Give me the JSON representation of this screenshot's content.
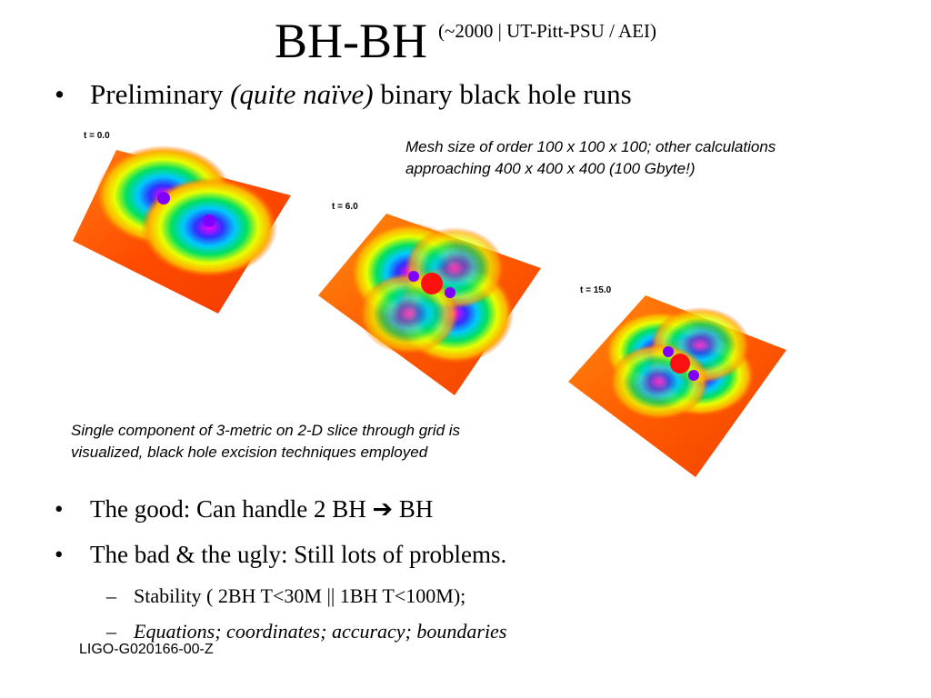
{
  "slide": {
    "title": "BH-BH",
    "subtitle": "(~2000 | UT-Pitt-PSU / AEI)",
    "bullet1": {
      "prefix": "Preliminary ",
      "emphasis": "(quite naïve)",
      "suffix": " binary black hole runs"
    },
    "note_top": "Mesh size of order 100 x 100 x 100; other calculations approaching 400 x 400 x 400 (100 Gbyte!)",
    "note_bottom": "Single component of 3-metric on 2-D slice through grid is visualized, black hole excision techniques employed",
    "snapshots": [
      {
        "label": "t = 0.0"
      },
      {
        "label": "t = 6.0"
      },
      {
        "label": "t = 15.0"
      }
    ],
    "bullet2": {
      "prefix": "The good: Can handle 2 BH ",
      "arrow": "➔",
      "suffix": " BH"
    },
    "bullet3": "The bad & the ugly: Still lots of problems.",
    "sub1": "Stability ( 2BH T<30M || 1BH T<100M);",
    "sub2": "Equations; coordinates; accuracy; boundaries",
    "footer": "LIGO-G020166-00-Z",
    "bullet_char": "•",
    "dash_char": "–"
  }
}
